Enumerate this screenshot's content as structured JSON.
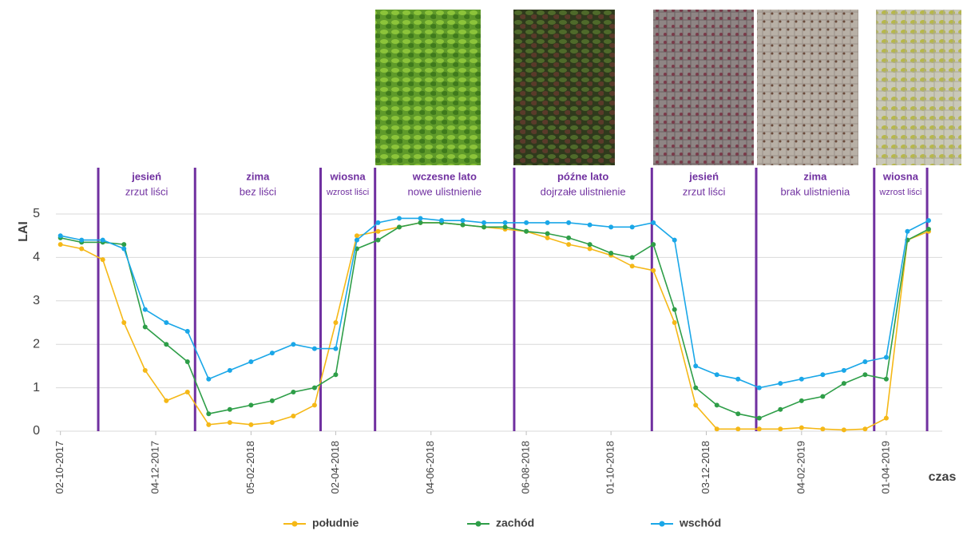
{
  "chart_data": {
    "type": "line",
    "y_label": "LAI",
    "x_label": "czas",
    "x": [
      "2017-10-02",
      "2017-10-16",
      "2017-10-30",
      "2017-11-13",
      "2017-11-27",
      "2017-12-11",
      "2017-12-25",
      "2018-01-08",
      "2018-01-22",
      "2018-02-05",
      "2018-02-19",
      "2018-03-05",
      "2018-03-19",
      "2018-04-02",
      "2018-04-16",
      "2018-04-30",
      "2018-05-14",
      "2018-05-28",
      "2018-06-11",
      "2018-06-25",
      "2018-07-09",
      "2018-07-23",
      "2018-08-06",
      "2018-08-20",
      "2018-09-03",
      "2018-09-17",
      "2018-10-01",
      "2018-10-15",
      "2018-10-29",
      "2018-11-12",
      "2018-11-26",
      "2018-12-10",
      "2018-12-24",
      "2019-01-07",
      "2019-01-21",
      "2019-02-04",
      "2019-02-18",
      "2019-03-04",
      "2019-03-18",
      "2019-04-01",
      "2019-04-15",
      "2019-04-29"
    ],
    "series": [
      {
        "name": "południe",
        "color": "#f5b817",
        "values": [
          4.3,
          4.2,
          3.95,
          2.5,
          1.4,
          0.7,
          0.9,
          0.15,
          0.2,
          0.15,
          0.2,
          0.35,
          0.6,
          2.5,
          4.5,
          4.6,
          4.7,
          4.8,
          4.8,
          4.75,
          4.7,
          4.65,
          4.6,
          4.45,
          4.3,
          4.2,
          4.05,
          3.8,
          3.7,
          2.5,
          0.6,
          0.05,
          0.05,
          0.05,
          0.05,
          0.08,
          0.05,
          0.03,
          0.05,
          0.3,
          4.4,
          4.6
        ]
      },
      {
        "name": "zachód",
        "color": "#2e9e48",
        "values": [
          4.45,
          4.35,
          4.35,
          4.3,
          2.4,
          2.0,
          1.6,
          0.4,
          0.5,
          0.6,
          0.7,
          0.9,
          1.0,
          1.3,
          4.2,
          4.4,
          4.7,
          4.8,
          4.8,
          4.75,
          4.7,
          4.7,
          4.6,
          4.55,
          4.45,
          4.3,
          4.1,
          4.0,
          4.3,
          2.8,
          1.0,
          0.6,
          0.4,
          0.3,
          0.5,
          0.7,
          0.8,
          1.1,
          1.3,
          1.2,
          4.4,
          4.65
        ]
      },
      {
        "name": "wschód",
        "color": "#1aa7e8",
        "values": [
          4.5,
          4.4,
          4.4,
          4.2,
          2.8,
          2.5,
          2.3,
          1.2,
          1.4,
          1.6,
          1.8,
          2.0,
          1.9,
          1.9,
          4.4,
          4.8,
          4.9,
          4.9,
          4.85,
          4.85,
          4.8,
          4.8,
          4.8,
          4.8,
          4.8,
          4.75,
          4.7,
          4.7,
          4.8,
          4.4,
          1.5,
          1.3,
          1.2,
          1.0,
          1.1,
          1.2,
          1.3,
          1.4,
          1.6,
          1.7,
          4.6,
          4.85
        ]
      }
    ],
    "xlim": [
      "2017-09-29",
      "2019-05-08"
    ],
    "xticks": [
      {
        "value": "2017-10-02",
        "label": "02-10-2017"
      },
      {
        "value": "2017-12-04",
        "label": "04-12-2017"
      },
      {
        "value": "2018-02-05",
        "label": "05-02-2018"
      },
      {
        "value": "2018-04-02",
        "label": "02-04-2018"
      },
      {
        "value": "2018-06-04",
        "label": "04-06-2018"
      },
      {
        "value": "2018-08-06",
        "label": "06-08-2018"
      },
      {
        "value": "2018-10-01",
        "label": "01-10-2018"
      },
      {
        "value": "2018-12-03",
        "label": "03-12-2018"
      },
      {
        "value": "2019-02-04",
        "label": "04-02-2019"
      },
      {
        "value": "2019-04-01",
        "label": "01-04-2019"
      }
    ],
    "ylim": [
      0,
      5
    ],
    "yticks": [
      0,
      1,
      2,
      3,
      4,
      5
    ],
    "grid": true,
    "dividers": [
      "2017-10-27",
      "2017-12-30",
      "2018-03-23",
      "2018-04-28",
      "2018-07-29",
      "2018-10-28",
      "2019-01-05",
      "2019-03-24",
      "2019-04-28"
    ],
    "periods": [
      {
        "name": "jesień",
        "description": "zrzut liści"
      },
      {
        "name": "zima",
        "description": "bez liści"
      },
      {
        "name": "wiosna",
        "description": "wzrost liści"
      },
      {
        "name": "wczesne lato",
        "description": "nowe ulistnienie"
      },
      {
        "name": "późne lato",
        "description": "dojrzałe ulistnienie"
      },
      {
        "name": "jesień",
        "description": "zrzut liści"
      },
      {
        "name": "zima",
        "description": "brak ulistnienia"
      },
      {
        "name": "wiosna",
        "description": "wzrost liści"
      }
    ]
  }
}
